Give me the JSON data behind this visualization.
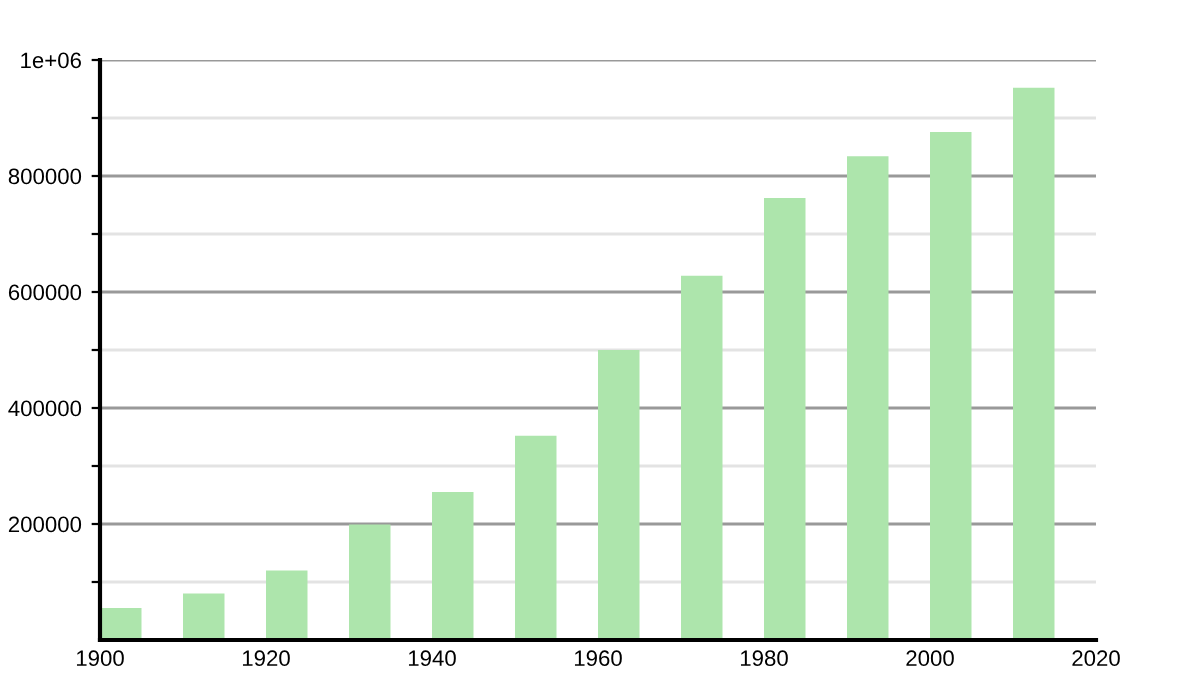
{
  "chart_data": {
    "type": "bar",
    "x": [
      1902.5,
      1912.5,
      1922.5,
      1932.5,
      1942.5,
      1952.5,
      1962.5,
      1972.5,
      1982.5,
      1992.5,
      2002.5,
      2012.5
    ],
    "values": [
      55000,
      80000,
      120000,
      199000,
      255000,
      352000,
      500000,
      628000,
      762000,
      834000,
      876000,
      952000
    ],
    "color": "#ade5ac",
    "xlim": [
      1900,
      2020
    ],
    "xticks": [
      1900,
      1920,
      1940,
      1960,
      1980,
      2000,
      2020
    ],
    "ylim": [
      0,
      1000000
    ],
    "yticks": [
      {
        "value": 100000,
        "label": null
      },
      {
        "value": 200000,
        "label": "200000"
      },
      {
        "value": 300000,
        "label": null
      },
      {
        "value": 400000,
        "label": "400000"
      },
      {
        "value": 500000,
        "label": null
      },
      {
        "value": 600000,
        "label": "600000"
      },
      {
        "value": 700000,
        "label": null
      },
      {
        "value": 800000,
        "label": "800000"
      },
      {
        "value": 900000,
        "label": null
      },
      {
        "value": 1000000,
        "label": "1e+06"
      }
    ],
    "grid": "y",
    "legend": false
  }
}
